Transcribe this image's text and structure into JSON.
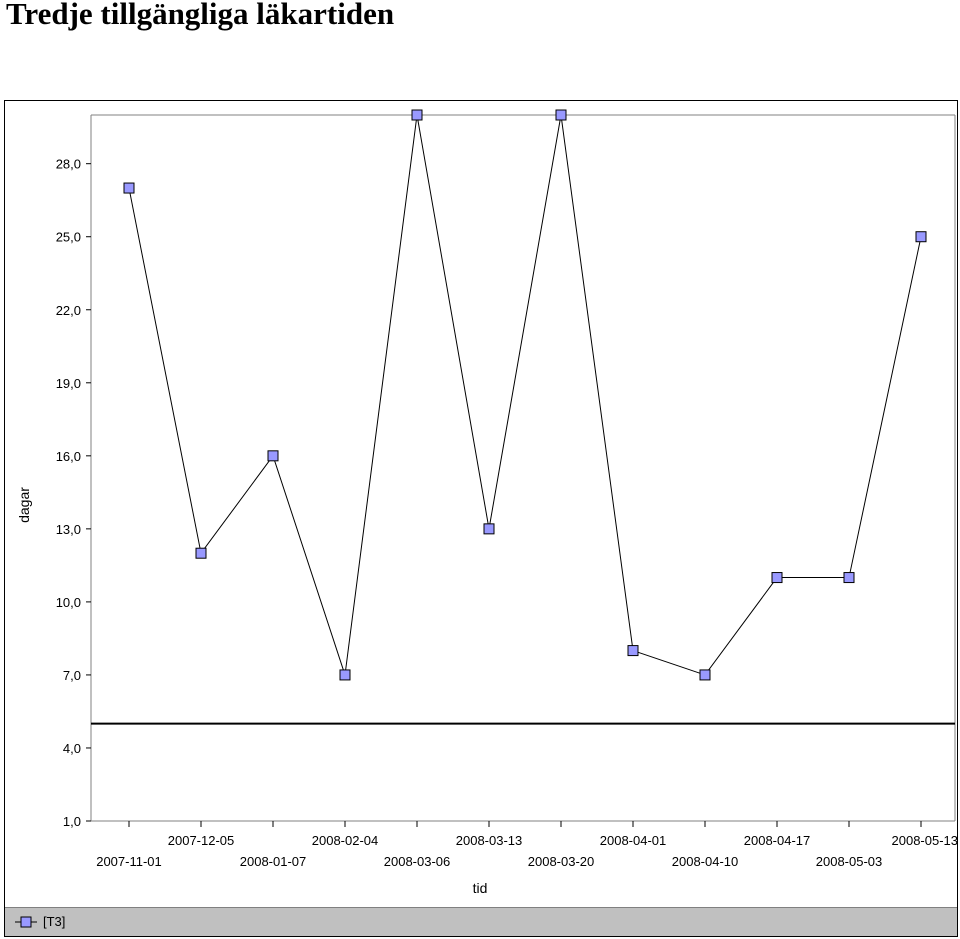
{
  "page": {
    "title": "Tredje tillgängliga läkartiden"
  },
  "chart_data": {
    "type": "line",
    "xlabel": "tid",
    "ylabel": "dagar",
    "categories": [
      "2007-11-01",
      "2007-12-05",
      "2008-01-07",
      "2008-02-04",
      "2008-03-06",
      "2008-03-13",
      "2008-03-20",
      "2008-04-01",
      "2008-04-10",
      "2008-04-17",
      "2008-05-03",
      "2008-05-13"
    ],
    "series": [
      {
        "name": "[T3]",
        "values": [
          27,
          12,
          16,
          7,
          30,
          13,
          30,
          8,
          7,
          11,
          11,
          25
        ],
        "color": "#9999ff"
      }
    ],
    "yticks": [
      "1,0",
      "4,0",
      "7,0",
      "10,0",
      "13,0",
      "16,0",
      "19,0",
      "22,0",
      "25,0",
      "28,0"
    ],
    "ylim": [
      1,
      30
    ],
    "reference_line": 5,
    "grid": false,
    "legend_position": "bottom"
  },
  "legend": {
    "label": "[T3]"
  }
}
